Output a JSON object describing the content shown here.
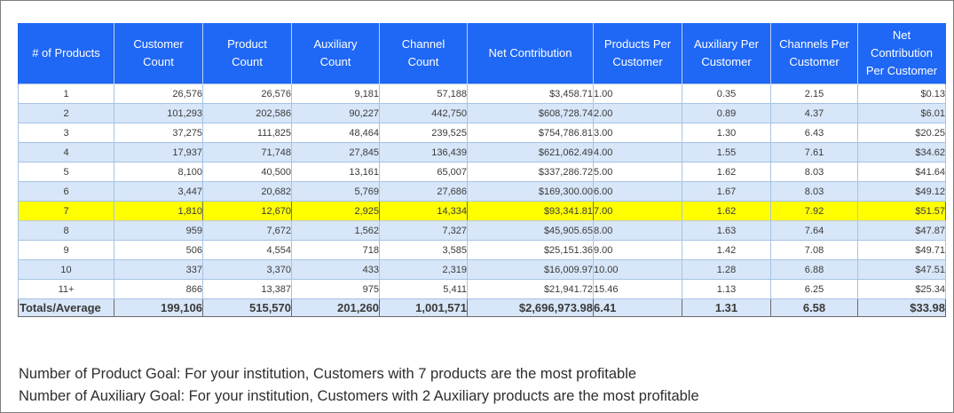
{
  "table": {
    "headers": [
      "# of Products",
      "Customer\nCount",
      "Product\nCount",
      "Auxiliary\nCount",
      "Channel\nCount",
      "Net Contribution",
      "Products Per\nCustomer",
      "Auxiliary Per\nCustomer",
      "Channels Per\nCustomer",
      "Net\nContribution\nPer Customer"
    ],
    "rows": [
      [
        "1",
        "26,576",
        "26,576",
        "9,181",
        "57,188",
        "$3,458.71",
        "1.00",
        "0.35",
        "2.15",
        "$0.13"
      ],
      [
        "2",
        "101,293",
        "202,586",
        "90,227",
        "442,750",
        "$608,728.74",
        "2.00",
        "0.89",
        "4.37",
        "$6.01"
      ],
      [
        "3",
        "37,275",
        "111,825",
        "48,464",
        "239,525",
        "$754,786.81",
        "3.00",
        "1.30",
        "6.43",
        "$20.25"
      ],
      [
        "4",
        "17,937",
        "71,748",
        "27,845",
        "136,439",
        "$621,062.49",
        "4.00",
        "1.55",
        "7.61",
        "$34.62"
      ],
      [
        "5",
        "8,100",
        "40,500",
        "13,161",
        "65,007",
        "$337,286.72",
        "5.00",
        "1.62",
        "8.03",
        "$41.64"
      ],
      [
        "6",
        "3,447",
        "20,682",
        "5,769",
        "27,686",
        "$169,300.00",
        "6.00",
        "1.67",
        "8.03",
        "$49.12"
      ],
      [
        "7",
        "1,810",
        "12,670",
        "2,925",
        "14,334",
        "$93,341.81",
        "7.00",
        "1.62",
        "7.92",
        "$51.57"
      ],
      [
        "8",
        "959",
        "7,672",
        "1,562",
        "7,327",
        "$45,905.65",
        "8.00",
        "1.63",
        "7.64",
        "$47.87"
      ],
      [
        "9",
        "506",
        "4,554",
        "718",
        "3,585",
        "$25,151.36",
        "9.00",
        "1.42",
        "7.08",
        "$49.71"
      ],
      [
        "10",
        "337",
        "3,370",
        "433",
        "2,319",
        "$16,009.97",
        "10.00",
        "1.28",
        "6.88",
        "$47.51"
      ],
      [
        "11+",
        "866",
        "13,387",
        "975",
        "5,411",
        "$21,941.72",
        "15.46",
        "1.13",
        "6.25",
        "$25.34"
      ]
    ],
    "highlight_row": 6,
    "totals": [
      "Totals/Average",
      "199,106",
      "515,570",
      "201,260",
      "1,001,571",
      "$2,696,973.98",
      "6.41",
      "1.31",
      "6.58",
      "$33.98"
    ],
    "colors": {
      "header_bg": "#1f67f5",
      "alt_row_bg": "#d7e6f8",
      "highlight_bg": "#ffff00"
    }
  },
  "notes": {
    "product_goal": "Number of Product Goal:  For your institution, Customers with 7 products are the most profitable",
    "auxiliary_goal": "Number of Auxiliary Goal: For your institution, Customers with 2 Auxiliary products are the most profitable"
  }
}
